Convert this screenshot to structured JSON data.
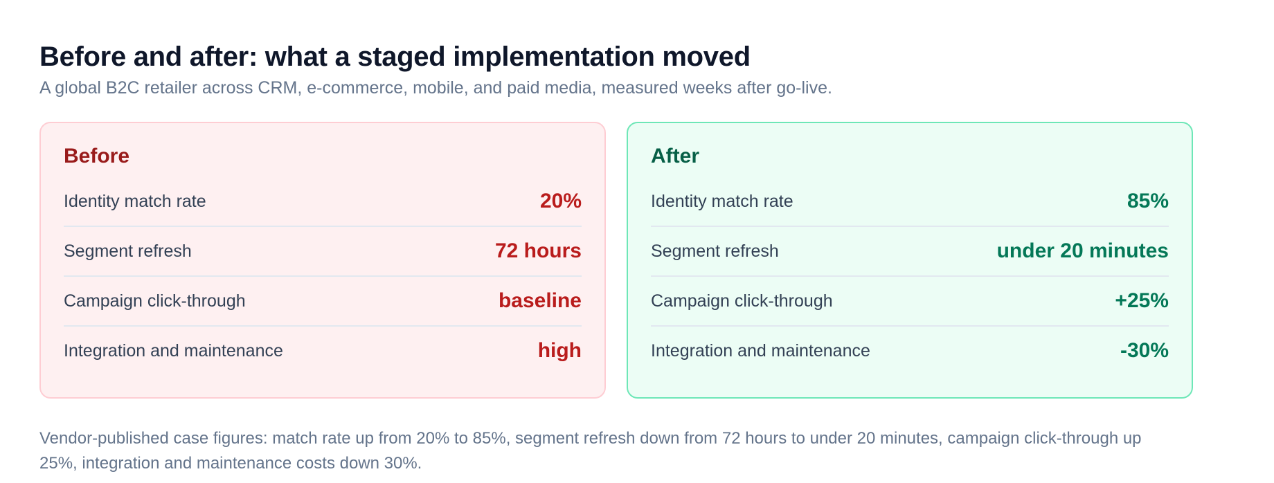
{
  "header": {
    "title": "Before and after: what a staged implementation moved",
    "subtitle": "A global B2C retailer across CRM, e-commerce, mobile, and paid media, measured weeks after go-live."
  },
  "before": {
    "title": "Before",
    "rows": [
      {
        "label": "Identity match rate",
        "value": "20%"
      },
      {
        "label": "Segment refresh",
        "value": "72 hours"
      },
      {
        "label": "Campaign click-through",
        "value": "baseline"
      },
      {
        "label": "Integration and maintenance",
        "value": "high"
      }
    ]
  },
  "after": {
    "title": "After",
    "rows": [
      {
        "label": "Identity match rate",
        "value": "85%"
      },
      {
        "label": "Segment refresh",
        "value": "under 20 minutes"
      },
      {
        "label": "Campaign click-through",
        "value": "+25%"
      },
      {
        "label": "Integration and maintenance",
        "value": "-30%"
      }
    ]
  },
  "footnote": "Vendor-published case figures: match rate up from 20% to 85%, segment refresh down from 72 hours to under 20 minutes, campaign click-through up 25%, integration and maintenance costs down 30%.",
  "colors": {
    "before_accent": "#b91c1c",
    "after_accent": "#047857",
    "before_background": "#fef0f1",
    "after_background": "#ecfdf5"
  }
}
